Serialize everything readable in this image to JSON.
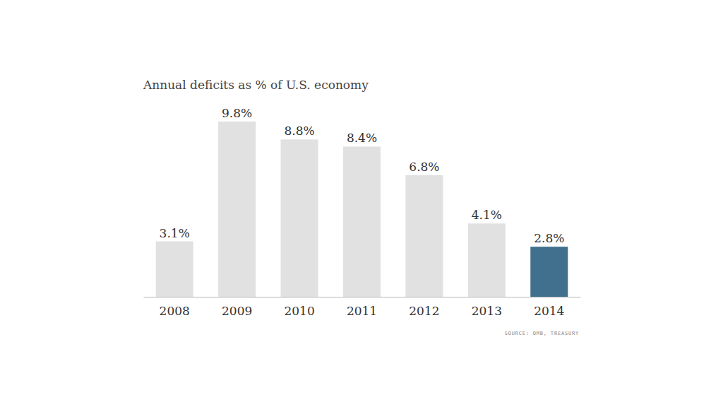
{
  "chart_data": {
    "type": "bar",
    "title": "Annual deficits as % of U.S. economy",
    "source": "SOURCE: OMB, TREASURY",
    "categories": [
      "2008",
      "2009",
      "2010",
      "2011",
      "2012",
      "2013",
      "2014"
    ],
    "values": [
      3.1,
      9.8,
      8.8,
      8.4,
      6.8,
      4.1,
      2.8
    ],
    "value_labels": [
      "3.1%",
      "9.8%",
      "8.8%",
      "8.4%",
      "6.8%",
      "4.1%",
      "2.8%"
    ],
    "colors": [
      "#e1e1e1",
      "#e1e1e1",
      "#e1e1e1",
      "#e1e1e1",
      "#e1e1e1",
      "#e1e1e1",
      "#41708f"
    ],
    "ylim": [
      0,
      10
    ],
    "data_labels": true,
    "tick_labels": "x"
  }
}
